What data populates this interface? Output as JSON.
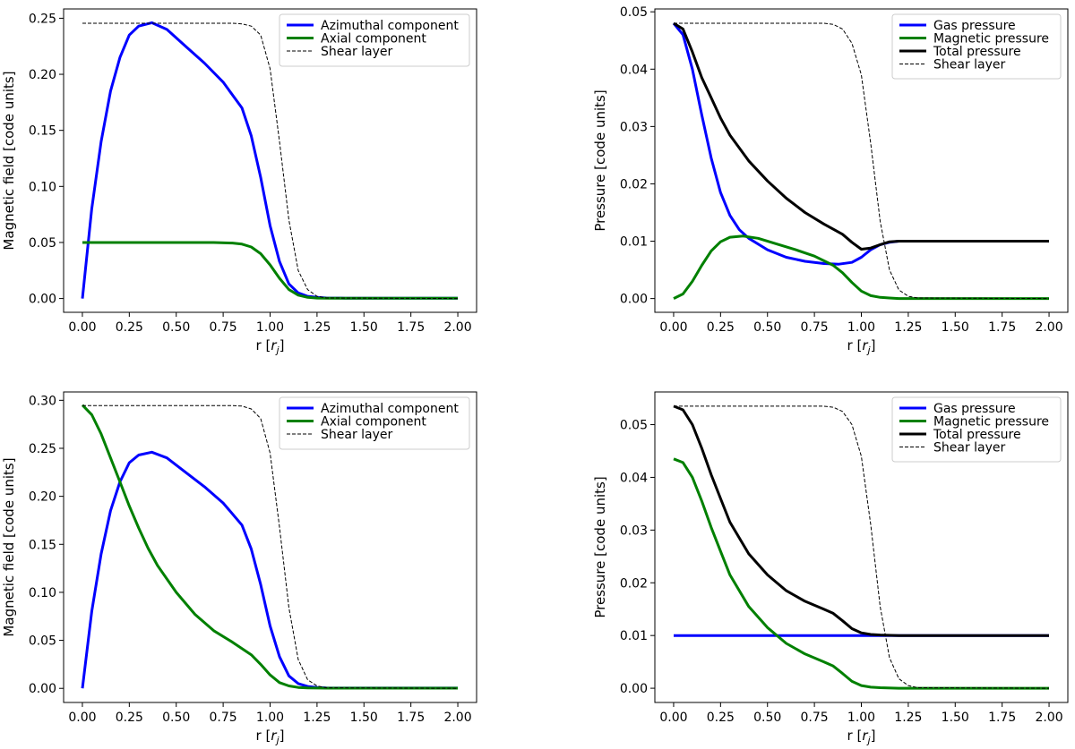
{
  "chart_data": [
    {
      "type": "line",
      "id": "top-left",
      "xlabel": "r [r_j]",
      "ylabel": "Magnetic field [code units]",
      "xlim": [
        -0.1,
        2.1
      ],
      "ylim": [
        -0.0123,
        0.2583
      ],
      "xticks": [
        0,
        0.25,
        0.5,
        0.75,
        1.0,
        1.25,
        1.5,
        1.75,
        2.0
      ],
      "xtick_labels": [
        "0.00",
        "0.25",
        "0.50",
        "0.75",
        "1.00",
        "1.25",
        "1.50",
        "1.75",
        "2.00"
      ],
      "yticks": [
        0,
        0.05,
        0.1,
        0.15,
        0.2,
        0.25
      ],
      "ytick_labels": [
        "0.00",
        "0.05",
        "0.10",
        "0.15",
        "0.20",
        "0.25"
      ],
      "legend_position": "top-right",
      "series": [
        {
          "name": "Azimuthal component",
          "color": "#0000ff",
          "style": "solid",
          "x": [
            0,
            0.05,
            0.1,
            0.15,
            0.2,
            0.25,
            0.3,
            0.37,
            0.45,
            0.55,
            0.65,
            0.75,
            0.85,
            0.9,
            0.95,
            1.0,
            1.05,
            1.1,
            1.15,
            1.2,
            1.25,
            1.3,
            1.4,
            2.0
          ],
          "y": [
            0,
            0.08,
            0.14,
            0.185,
            0.215,
            0.235,
            0.243,
            0.246,
            0.24,
            0.225,
            0.21,
            0.193,
            0.17,
            0.145,
            0.108,
            0.065,
            0.033,
            0.013,
            0.005,
            0.002,
            0.001,
            0.0005,
            0.0003,
            0.0003
          ]
        },
        {
          "name": "Axial component",
          "color": "#008000",
          "style": "solid",
          "x": [
            0,
            0.7,
            0.8,
            0.85,
            0.9,
            0.95,
            1.0,
            1.05,
            1.1,
            1.15,
            1.2,
            1.25,
            1.3,
            2.0
          ],
          "y": [
            0.05,
            0.05,
            0.0495,
            0.0485,
            0.046,
            0.04,
            0.03,
            0.018,
            0.008,
            0.003,
            0.001,
            0.0004,
            0.0003,
            0.0003
          ]
        },
        {
          "name": "Shear layer",
          "color": "#000000",
          "style": "dashed",
          "x": [
            0,
            0.8,
            0.85,
            0.9,
            0.95,
            1.0,
            1.05,
            1.1,
            1.15,
            1.2,
            1.25,
            1.3,
            2.0
          ],
          "y": [
            0.2455,
            0.2455,
            0.245,
            0.243,
            0.235,
            0.205,
            0.14,
            0.07,
            0.025,
            0.008,
            0.002,
            0.0005,
            0.0
          ]
        }
      ]
    },
    {
      "type": "line",
      "id": "top-right",
      "xlabel": "r [r_j]",
      "ylabel": "Pressure [code units]",
      "xlim": [
        -0.1,
        2.1
      ],
      "ylim": [
        -0.0024,
        0.0505
      ],
      "xticks": [
        0,
        0.25,
        0.5,
        0.75,
        1.0,
        1.25,
        1.5,
        1.75,
        2.0
      ],
      "xtick_labels": [
        "0.00",
        "0.25",
        "0.50",
        "0.75",
        "1.00",
        "1.25",
        "1.50",
        "1.75",
        "2.00"
      ],
      "yticks": [
        0,
        0.01,
        0.02,
        0.03,
        0.04,
        0.05
      ],
      "ytick_labels": [
        "0.00",
        "0.01",
        "0.02",
        "0.03",
        "0.04",
        "0.05"
      ],
      "legend_position": "top-right",
      "series": [
        {
          "name": "Gas pressure",
          "color": "#0000ff",
          "style": "solid",
          "x": [
            0,
            0.05,
            0.1,
            0.15,
            0.2,
            0.25,
            0.3,
            0.35,
            0.4,
            0.5,
            0.6,
            0.7,
            0.8,
            0.88,
            0.95,
            1.0,
            1.05,
            1.1,
            1.15,
            1.2,
            1.3,
            2.0
          ],
          "y": [
            0.048,
            0.046,
            0.04,
            0.032,
            0.0245,
            0.0185,
            0.0145,
            0.012,
            0.0105,
            0.0085,
            0.0072,
            0.0065,
            0.0061,
            0.006,
            0.0063,
            0.0072,
            0.0085,
            0.0094,
            0.0098,
            0.01,
            0.01,
            0.01
          ]
        },
        {
          "name": "Magnetic pressure",
          "color": "#008000",
          "style": "solid",
          "x": [
            0,
            0.05,
            0.1,
            0.15,
            0.2,
            0.25,
            0.3,
            0.37,
            0.45,
            0.55,
            0.65,
            0.75,
            0.85,
            0.9,
            0.95,
            1.0,
            1.05,
            1.1,
            1.15,
            1.2,
            1.3,
            2.0
          ],
          "y": [
            0,
            0.0008,
            0.003,
            0.0058,
            0.0083,
            0.0099,
            0.0107,
            0.0109,
            0.0105,
            0.0095,
            0.0085,
            0.0074,
            0.0058,
            0.0045,
            0.0028,
            0.0013,
            0.0005,
            0.0002,
            0.0001,
            0,
            0,
            0
          ]
        },
        {
          "name": "Total pressure",
          "color": "#000000",
          "style": "solid",
          "x": [
            0,
            0.05,
            0.1,
            0.15,
            0.2,
            0.25,
            0.3,
            0.4,
            0.5,
            0.6,
            0.7,
            0.8,
            0.9,
            0.95,
            1.0,
            1.05,
            1.1,
            1.15,
            1.2,
            1.3,
            2.0
          ],
          "y": [
            0.048,
            0.047,
            0.043,
            0.0385,
            0.035,
            0.0315,
            0.0285,
            0.024,
            0.0205,
            0.0175,
            0.015,
            0.013,
            0.0112,
            0.0098,
            0.0086,
            0.0088,
            0.0094,
            0.0099,
            0.01,
            0.01,
            0.01
          ]
        },
        {
          "name": "Shear layer",
          "color": "#000000",
          "style": "dashed",
          "x": [
            0,
            0.8,
            0.85,
            0.9,
            0.95,
            1.0,
            1.05,
            1.1,
            1.15,
            1.2,
            1.25,
            1.3,
            2.0
          ],
          "y": [
            0.048,
            0.048,
            0.0478,
            0.047,
            0.0445,
            0.039,
            0.027,
            0.0135,
            0.005,
            0.0015,
            0.0004,
            0.0001,
            0.0
          ]
        }
      ]
    },
    {
      "type": "line",
      "id": "bottom-left",
      "xlabel": "r [r_j]",
      "ylabel": "Magnetic field [code units]",
      "xlim": [
        -0.1,
        2.1
      ],
      "ylim": [
        -0.0147,
        0.3087
      ],
      "xticks": [
        0,
        0.25,
        0.5,
        0.75,
        1.0,
        1.25,
        1.5,
        1.75,
        2.0
      ],
      "xtick_labels": [
        "0.00",
        "0.25",
        "0.50",
        "0.75",
        "1.00",
        "1.25",
        "1.50",
        "1.75",
        "2.00"
      ],
      "yticks": [
        0,
        0.05,
        0.1,
        0.15,
        0.2,
        0.25,
        0.3
      ],
      "ytick_labels": [
        "0.00",
        "0.05",
        "0.10",
        "0.15",
        "0.20",
        "0.25",
        "0.30"
      ],
      "legend_position": "top-right",
      "series": [
        {
          "name": "Azimuthal component",
          "color": "#0000ff",
          "style": "solid",
          "x": [
            0,
            0.05,
            0.1,
            0.15,
            0.2,
            0.25,
            0.3,
            0.37,
            0.45,
            0.55,
            0.65,
            0.75,
            0.85,
            0.9,
            0.95,
            1.0,
            1.05,
            1.1,
            1.15,
            1.2,
            1.25,
            1.3,
            1.4,
            2.0
          ],
          "y": [
            0,
            0.08,
            0.14,
            0.185,
            0.215,
            0.235,
            0.243,
            0.246,
            0.24,
            0.225,
            0.21,
            0.193,
            0.17,
            0.145,
            0.108,
            0.065,
            0.033,
            0.013,
            0.005,
            0.002,
            0.001,
            0.0005,
            0.0003,
            0.0003
          ]
        },
        {
          "name": "Axial component",
          "color": "#008000",
          "style": "solid",
          "x": [
            0,
            0.05,
            0.1,
            0.15,
            0.2,
            0.25,
            0.3,
            0.35,
            0.4,
            0.5,
            0.6,
            0.7,
            0.8,
            0.9,
            0.95,
            1.0,
            1.05,
            1.1,
            1.15,
            1.2,
            1.3,
            2.0
          ],
          "y": [
            0.295,
            0.285,
            0.265,
            0.24,
            0.215,
            0.19,
            0.167,
            0.146,
            0.128,
            0.1,
            0.077,
            0.06,
            0.048,
            0.035,
            0.025,
            0.014,
            0.006,
            0.0025,
            0.001,
            0.0005,
            0.0002,
            0.0002
          ]
        },
        {
          "name": "Shear layer",
          "color": "#000000",
          "style": "dashed",
          "x": [
            0,
            0.8,
            0.85,
            0.9,
            0.95,
            1.0,
            1.05,
            1.1,
            1.15,
            1.2,
            1.25,
            1.3,
            2.0
          ],
          "y": [
            0.2945,
            0.2945,
            0.294,
            0.291,
            0.281,
            0.245,
            0.168,
            0.084,
            0.03,
            0.009,
            0.0025,
            0.0006,
            0.0
          ]
        }
      ]
    },
    {
      "type": "line",
      "id": "bottom-right",
      "xlabel": "r [r_j]",
      "ylabel": "Pressure [code units]",
      "xlim": [
        -0.1,
        2.1
      ],
      "ylim": [
        -0.0027,
        0.0562
      ],
      "xticks": [
        0,
        0.25,
        0.5,
        0.75,
        1.0,
        1.25,
        1.5,
        1.75,
        2.0
      ],
      "xtick_labels": [
        "0.00",
        "0.25",
        "0.50",
        "0.75",
        "1.00",
        "1.25",
        "1.50",
        "1.75",
        "2.00"
      ],
      "yticks": [
        0,
        0.01,
        0.02,
        0.03,
        0.04,
        0.05
      ],
      "ytick_labels": [
        "0.00",
        "0.01",
        "0.02",
        "0.03",
        "0.04",
        "0.05"
      ],
      "legend_position": "top-right",
      "series": [
        {
          "name": "Gas pressure",
          "color": "#0000ff",
          "style": "solid",
          "x": [
            0,
            2.0
          ],
          "y": [
            0.01,
            0.01
          ]
        },
        {
          "name": "Magnetic pressure",
          "color": "#008000",
          "style": "solid",
          "x": [
            0,
            0.05,
            0.1,
            0.15,
            0.2,
            0.25,
            0.3,
            0.4,
            0.5,
            0.6,
            0.7,
            0.8,
            0.85,
            0.9,
            0.95,
            1.0,
            1.05,
            1.1,
            1.2,
            2.0
          ],
          "y": [
            0.0435,
            0.0428,
            0.04,
            0.0355,
            0.0305,
            0.026,
            0.0215,
            0.0155,
            0.0115,
            0.0085,
            0.0065,
            0.005,
            0.0042,
            0.0028,
            0.0013,
            0.0005,
            0.0002,
            0.0001,
            0,
            0
          ]
        },
        {
          "name": "Total pressure",
          "color": "#000000",
          "style": "solid",
          "x": [
            0,
            0.05,
            0.1,
            0.15,
            0.2,
            0.25,
            0.3,
            0.4,
            0.5,
            0.6,
            0.7,
            0.8,
            0.85,
            0.9,
            0.95,
            1.0,
            1.05,
            1.1,
            1.2,
            2.0
          ],
          "y": [
            0.0535,
            0.0528,
            0.05,
            0.0455,
            0.0405,
            0.036,
            0.0315,
            0.0255,
            0.0215,
            0.0185,
            0.0165,
            0.015,
            0.0142,
            0.0128,
            0.0113,
            0.0105,
            0.0102,
            0.0101,
            0.01,
            0.01
          ]
        },
        {
          "name": "Shear layer",
          "color": "#000000",
          "style": "dashed",
          "x": [
            0,
            0.8,
            0.85,
            0.9,
            0.95,
            1.0,
            1.05,
            1.1,
            1.15,
            1.2,
            1.25,
            1.3,
            2.0
          ],
          "y": [
            0.0535,
            0.0535,
            0.0533,
            0.0525,
            0.05,
            0.044,
            0.031,
            0.0155,
            0.0058,
            0.0018,
            0.0005,
            0.0001,
            0.0
          ]
        }
      ]
    }
  ]
}
